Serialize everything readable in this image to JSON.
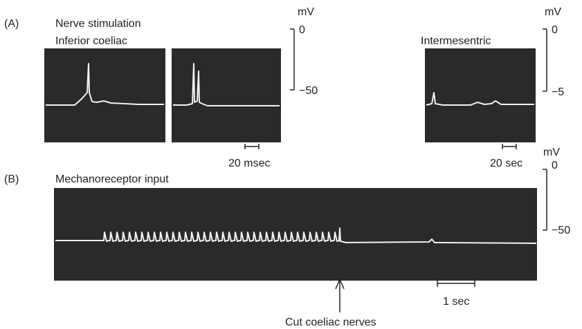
{
  "panel_a": {
    "label": "(A)",
    "title": "Nerve stimulation",
    "left_subtitle": "Inferior coeliac",
    "right_subtitle": "Intermesentric",
    "left_scale": {
      "unit": "mV",
      "top": "0",
      "bottom": "−50"
    },
    "right_scale": {
      "unit": "mV",
      "top": "0",
      "bottom": "−5"
    },
    "left_time_scale": "20 msec",
    "right_time_scale": "20 sec"
  },
  "panel_b": {
    "label": "(B)",
    "title": "Mechanoreceptor input",
    "scale": {
      "unit": "mV",
      "top": "0",
      "bottom": "−50"
    },
    "time_scale": "1 sec",
    "annotation": "Cut coeliac nerves"
  }
}
